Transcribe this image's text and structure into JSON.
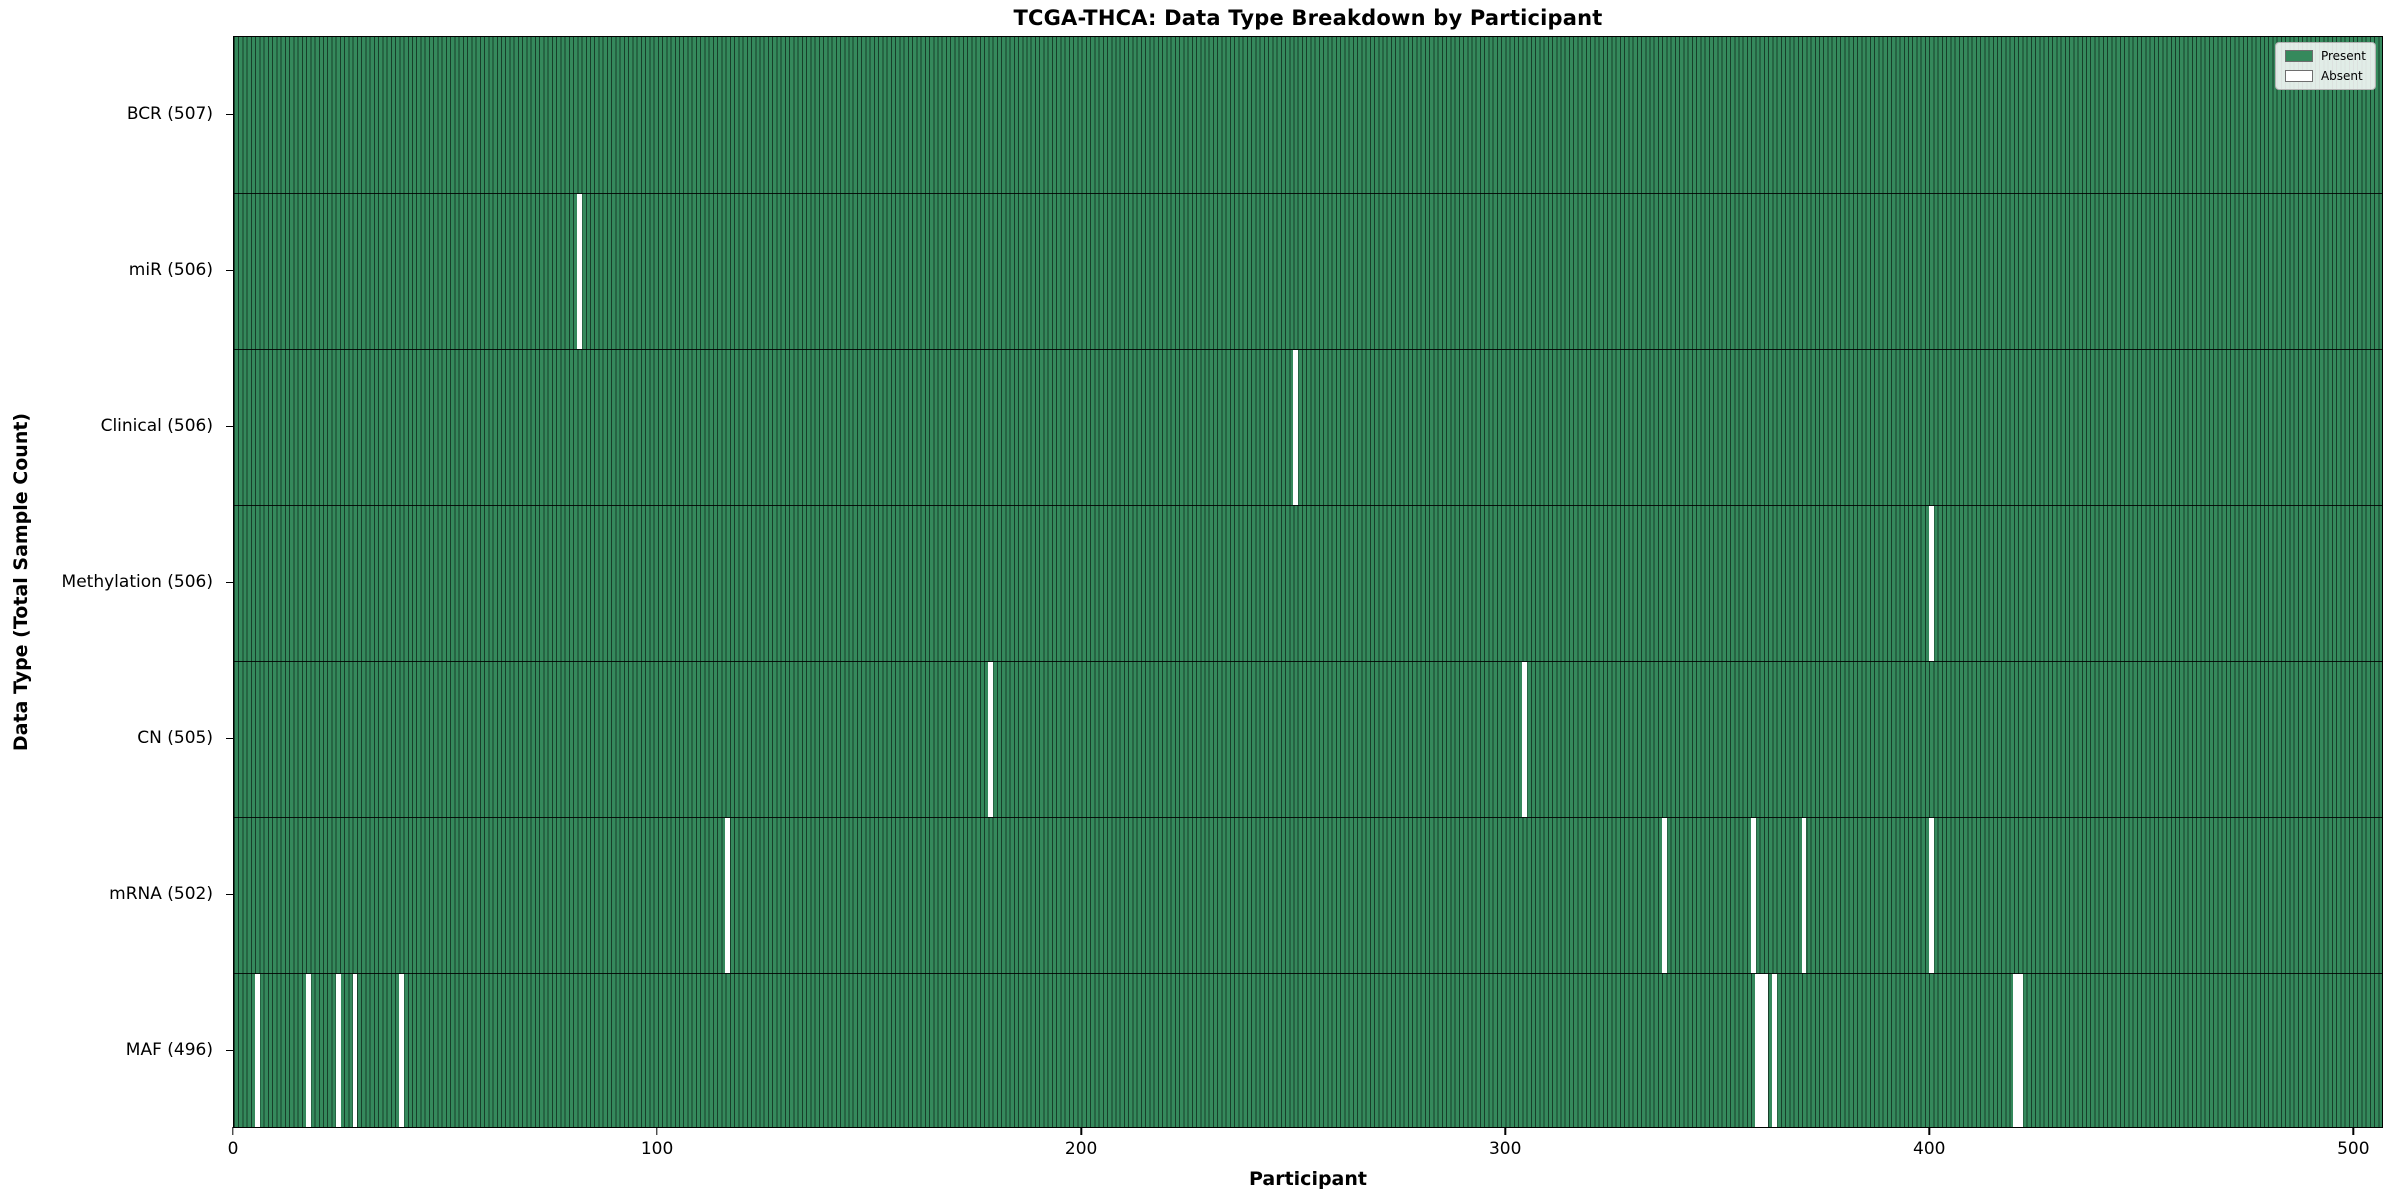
{
  "title": "TCGA-THCA: Data Type Breakdown by Participant",
  "xlabel": "Participant",
  "ylabel": "Data Type (Total Sample Count)",
  "legend": {
    "present_label": "Present",
    "absent_label": "Absent"
  },
  "colors": {
    "present": "#35895c",
    "cell_edge": "#173f2a",
    "absent": "#ffffff",
    "axis": "#000000"
  },
  "chart_data": {
    "type": "heatmap",
    "title": "TCGA-THCA: Data Type Breakdown by Participant",
    "xlabel": "Participant",
    "ylabel": "Data Type (Total Sample Count)",
    "x_ticks": [
      0,
      100,
      200,
      300,
      400,
      500
    ],
    "total_participants": 507,
    "grid": false,
    "legend_position": "upper right",
    "legend_entries": [
      {
        "label": "Present",
        "color": "#35895c"
      },
      {
        "label": "Absent",
        "color": "#ffffff"
      }
    ],
    "rows": [
      {
        "data_type": "BCR",
        "label": "BCR (507)",
        "present_count": 507,
        "absent_count": 0,
        "absent_participants": []
      },
      {
        "data_type": "miR",
        "label": "miR (506)",
        "present_count": 506,
        "absent_count": 1,
        "absent_participants": [
          81
        ]
      },
      {
        "data_type": "Clinical",
        "label": "Clinical (506)",
        "present_count": 506,
        "absent_count": 1,
        "absent_participants": [
          250
        ]
      },
      {
        "data_type": "Methylation",
        "label": "Methylation (506)",
        "present_count": 506,
        "absent_count": 1,
        "absent_participants": [
          400
        ]
      },
      {
        "data_type": "CN",
        "label": "CN (505)",
        "present_count": 505,
        "absent_count": 2,
        "absent_participants": [
          178,
          304
        ]
      },
      {
        "data_type": "mRNA",
        "label": "mRNA (502)",
        "present_count": 502,
        "absent_count": 5,
        "absent_participants": [
          116,
          337,
          358,
          370,
          400
        ]
      },
      {
        "data_type": "MAF",
        "label": "MAF (496)",
        "present_count": 496,
        "absent_count": 11,
        "absent_participants": [
          5,
          17,
          24,
          28,
          39,
          359,
          360,
          361,
          363,
          420,
          421
        ]
      }
    ]
  }
}
